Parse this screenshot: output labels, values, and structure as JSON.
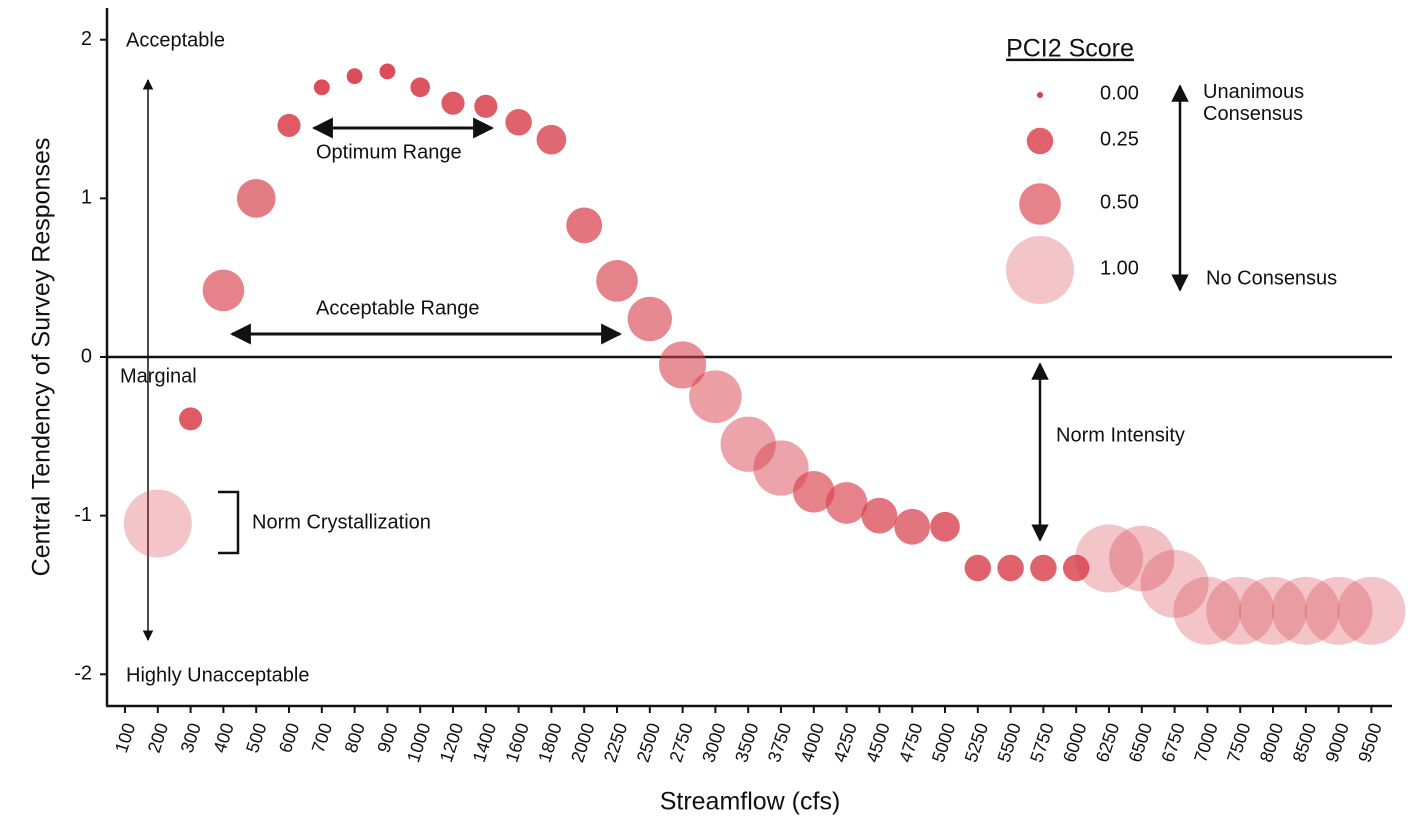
{
  "chart_data": {
    "type": "bubble",
    "x_label": "Streamflow (cfs)",
    "y_label": "Central Tendency of Survey Responses",
    "categories": [
      "100",
      "200",
      "300",
      "400",
      "500",
      "600",
      "700",
      "800",
      "900",
      "1000",
      "1200",
      "1400",
      "1600",
      "1800",
      "2000",
      "2250",
      "2500",
      "2750",
      "3000",
      "3500",
      "3750",
      "4000",
      "4250",
      "4500",
      "4750",
      "5000",
      "5250",
      "5500",
      "5750",
      "6000",
      "6250",
      "6500",
      "6750",
      "7000",
      "7500",
      "8000",
      "8500",
      "9000",
      "9500"
    ],
    "series": [
      {
        "name": "PCI2 Score",
        "color": "#d8404c",
        "values": [
          null,
          -1.05,
          -0.39,
          0.42,
          1.0,
          1.46,
          1.7,
          1.77,
          1.8,
          1.7,
          1.6,
          1.58,
          1.48,
          1.37,
          0.83,
          0.48,
          0.24,
          -0.05,
          -0.25,
          -0.55,
          -0.7,
          -0.85,
          -0.92,
          -1.0,
          -1.07,
          -1.07,
          -1.33,
          -1.33,
          -1.33,
          -1.33,
          -1.27,
          -1.27,
          -1.43,
          -1.6,
          -1.6,
          -1.6,
          -1.6,
          -1.6,
          -1.6
        ],
        "sizes": [
          null,
          1.0,
          0.2,
          0.5,
          0.45,
          0.2,
          0.1,
          0.1,
          0.1,
          0.15,
          0.2,
          0.2,
          0.25,
          0.3,
          0.4,
          0.5,
          0.55,
          0.6,
          0.7,
          0.75,
          0.75,
          0.5,
          0.5,
          0.4,
          0.4,
          0.3,
          0.25,
          0.25,
          0.25,
          0.25,
          1.0,
          0.95,
          1.0,
          1.0,
          1.0,
          1.0,
          1.0,
          1.0,
          1.0
        ]
      }
    ],
    "ylim": [
      -2.2,
      2.2
    ],
    "yticks": [
      -2,
      -1,
      0,
      1,
      2
    ],
    "reference_line": 0,
    "size_legend": {
      "title": "PCI2 Score",
      "sizes": [
        {
          "value": 0,
          "label": "0.00"
        },
        {
          "value": 0.25,
          "label": "0.25"
        },
        {
          "value": 0.5,
          "label": "0.50"
        },
        {
          "value": 1,
          "label": "1.00"
        }
      ],
      "top_note": "Unanimous Consensus",
      "bottom_note": "No Consensus"
    },
    "annotations": {
      "acceptable": "Acceptable",
      "marginal": "Marginal",
      "unacceptable": "Highly Unacceptable",
      "optimum": "Optimum Range",
      "acceptable_range": "Acceptable Range",
      "crystallization": "Norm Crystallization",
      "intensity": "Norm Intensity"
    }
  }
}
